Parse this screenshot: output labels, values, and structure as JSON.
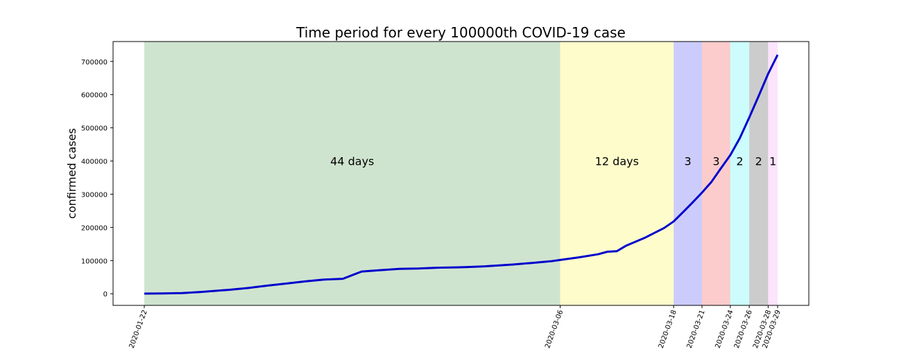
{
  "chart_data": {
    "type": "line",
    "title": "Time period for every 100000th COVID-19 case",
    "xlabel": "",
    "ylabel": "confirmed cases",
    "xlim": [
      "2020-01-22",
      "2020-03-29"
    ],
    "ylim": [
      -35000,
      760000
    ],
    "yticks": [
      0,
      100000,
      200000,
      300000,
      400000,
      500000,
      600000,
      700000
    ],
    "xticks": [
      "2020-01-22",
      "2020-03-06",
      "2020-03-18",
      "2020-03-21",
      "2020-03-24",
      "2020-03-26",
      "2020-03-28",
      "2020-03-29"
    ],
    "grid": false,
    "line_color": "#0000cc",
    "bands": [
      {
        "start": "2020-01-22",
        "end": "2020-03-06",
        "label": "44 days",
        "color": "#cfe4cf"
      },
      {
        "start": "2020-03-06",
        "end": "2020-03-18",
        "label": "12 days",
        "color": "#fefccb"
      },
      {
        "start": "2020-03-18",
        "end": "2020-03-21",
        "label": "3",
        "color": "#ccccfc"
      },
      {
        "start": "2020-03-21",
        "end": "2020-03-24",
        "label": "3",
        "color": "#fccccc"
      },
      {
        "start": "2020-03-24",
        "end": "2020-03-26",
        "label": "2",
        "color": "#ccfcfc"
      },
      {
        "start": "2020-03-26",
        "end": "2020-03-28",
        "label": "2",
        "color": "#cccccc"
      },
      {
        "start": "2020-03-28",
        "end": "2020-03-29",
        "label": "1",
        "color": "#fce4fc"
      }
    ],
    "series": [
      {
        "x": [
          "2020-01-22",
          "2020-01-24",
          "2020-01-26",
          "2020-01-28",
          "2020-01-30",
          "2020-01-31",
          "2020-02-02",
          "2020-02-04",
          "2020-02-06",
          "2020-02-08",
          "2020-02-10",
          "2020-02-12",
          "2020-02-14",
          "2020-02-16",
          "2020-02-18",
          "2020-02-20",
          "2020-02-22",
          "2020-02-23",
          "2020-02-24",
          "2020-02-25",
          "2020-02-27",
          "2020-03-01",
          "2020-03-03",
          "2020-03-05",
          "2020-03-06",
          "2020-03-08",
          "2020-03-10",
          "2020-03-11",
          "2020-03-12",
          "2020-03-13",
          "2020-03-15",
          "2020-03-17",
          "2020-03-18",
          "2020-03-19",
          "2020-03-20",
          "2020-03-21",
          "2020-03-22",
          "2020-03-23",
          "2020-03-24",
          "2020-03-25",
          "2020-03-26",
          "2020-03-27",
          "2020-03-28",
          "2020-03-29"
        ],
        "y": [
          555,
          941,
          2118,
          5578,
          9927,
          11950,
          17373,
          24554,
          30817,
          37120,
          42761,
          45171,
          67100,
          71226,
          75136,
          76190,
          78573,
          78982,
          79546,
          80399,
          82744,
          88120,
          92844,
          97886,
          101800,
          109800,
          119000,
          126700,
          128300,
          145200,
          169300,
          198300,
          218000,
          246000,
          275000,
          305000,
          337000,
          378000,
          418000,
          469000,
          531000,
          596000,
          663000,
          720000
        ]
      }
    ]
  }
}
